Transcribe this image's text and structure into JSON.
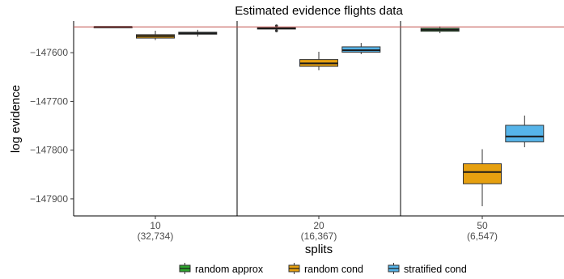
{
  "chart_data": {
    "type": "boxplot",
    "title": "Estimated evidence flights data",
    "xlabel": "splits",
    "ylabel": "log evidence",
    "ylim": [
      -147935,
      -147535
    ],
    "yticks": [
      {
        "value": -147600,
        "label": "−147600"
      },
      {
        "value": -147700,
        "label": "−147700"
      },
      {
        "value": -147800,
        "label": "−147800"
      },
      {
        "value": -147900,
        "label": "−147900"
      }
    ],
    "reference_line": {
      "value": -147547,
      "color": "#c0504d"
    },
    "categories": [
      {
        "label": "10",
        "sublabel": "(32,734)"
      },
      {
        "label": "20",
        "sublabel": "(16,367)"
      },
      {
        "label": "50",
        "sublabel": "(6,547)"
      }
    ],
    "legend_position": "bottom",
    "series": [
      {
        "name": "random approx",
        "color": "#2fa52f",
        "boxes": [
          {
            "min": -147548,
            "q1": -147547.5,
            "median": -147547,
            "q3": -147546.5,
            "max": -147546,
            "outliers": []
          },
          {
            "min": -147553,
            "q1": -147551,
            "median": -147550,
            "q3": -147549,
            "max": -147546,
            "outliers": [
              -147545,
              -147555
            ]
          },
          {
            "min": -147560,
            "q1": -147556,
            "median": -147553,
            "q3": -147550,
            "max": -147546,
            "outliers": []
          }
        ]
      },
      {
        "name": "random cond",
        "color": "#e6a010",
        "boxes": [
          {
            "min": -147574,
            "q1": -147570,
            "median": -147566,
            "q3": -147563,
            "max": -147555,
            "outliers": []
          },
          {
            "min": -147636,
            "q1": -147628,
            "median": -147622,
            "q3": -147614,
            "max": -147598,
            "outliers": []
          },
          {
            "min": -147915,
            "q1": -147869,
            "median": -147845,
            "q3": -147828,
            "max": -147798,
            "outliers": []
          }
        ]
      },
      {
        "name": "stratified cond",
        "color": "#56b4e9",
        "boxes": [
          {
            "min": -147567,
            "q1": -147562,
            "median": -147560,
            "q3": -147558,
            "max": -147553,
            "outliers": []
          },
          {
            "min": -147603,
            "q1": -147599,
            "median": -147595,
            "q3": -147588,
            "max": -147580,
            "outliers": []
          },
          {
            "min": -147794,
            "q1": -147783,
            "median": -147772,
            "q3": -147749,
            "max": -147729,
            "outliers": []
          }
        ]
      }
    ]
  }
}
